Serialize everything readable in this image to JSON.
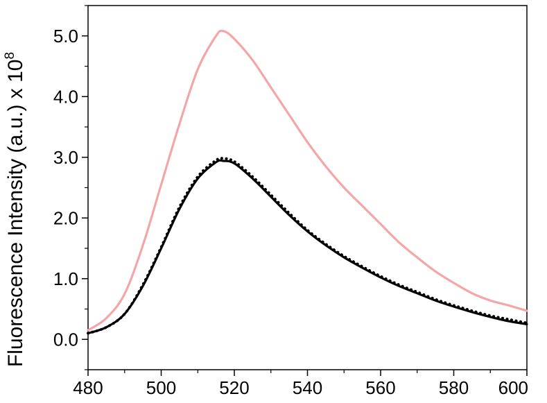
{
  "chart_data": {
    "type": "line",
    "title": "",
    "xlabel": "",
    "ylabel": "Fluorescence Intensity (a.u.) x 10",
    "ylabel_exponent": "8",
    "xlim": [
      480,
      600
    ],
    "ylim": [
      -0.5,
      5.5
    ],
    "x_ticks": [
      "480",
      "500",
      "520",
      "540",
      "560",
      "580",
      "600"
    ],
    "y_ticks": [
      "0.0",
      "1.0",
      "2.0",
      "3.0",
      "4.0",
      "5.0"
    ],
    "grid": false,
    "legend": "none",
    "series": [
      {
        "color": "#f4a6a6",
        "style": "solid",
        "x": [
          480,
          485,
          490,
          495,
          500,
          505,
          510,
          515,
          517,
          520,
          525,
          530,
          535,
          540,
          545,
          550,
          555,
          560,
          565,
          570,
          575,
          580,
          585,
          590,
          595,
          600
        ],
        "y": [
          0.15,
          0.35,
          0.75,
          1.55,
          2.55,
          3.55,
          4.45,
          5.0,
          5.08,
          4.95,
          4.6,
          4.15,
          3.7,
          3.25,
          2.85,
          2.5,
          2.2,
          1.9,
          1.6,
          1.35,
          1.12,
          0.93,
          0.76,
          0.64,
          0.56,
          0.47
        ]
      },
      {
        "color": "#000000",
        "style": "solid",
        "x": [
          480,
          485,
          490,
          495,
          500,
          505,
          510,
          515,
          517,
          520,
          525,
          530,
          535,
          540,
          545,
          550,
          555,
          560,
          565,
          570,
          575,
          580,
          585,
          590,
          595,
          600
        ],
        "y": [
          0.1,
          0.2,
          0.42,
          0.88,
          1.5,
          2.15,
          2.65,
          2.92,
          2.94,
          2.9,
          2.65,
          2.35,
          2.05,
          1.78,
          1.55,
          1.35,
          1.18,
          1.02,
          0.88,
          0.76,
          0.64,
          0.54,
          0.45,
          0.37,
          0.3,
          0.25
        ]
      },
      {
        "color": "#000000",
        "style": "dotted",
        "x": [
          480,
          485,
          490,
          495,
          500,
          505,
          510,
          515,
          517,
          520,
          525,
          530,
          535,
          540,
          545,
          550,
          555,
          560,
          565,
          570,
          575,
          580,
          585,
          590,
          595,
          600
        ],
        "y": [
          0.1,
          0.2,
          0.42,
          0.9,
          1.52,
          2.18,
          2.68,
          2.95,
          2.98,
          2.93,
          2.68,
          2.38,
          2.08,
          1.8,
          1.57,
          1.37,
          1.2,
          1.04,
          0.9,
          0.78,
          0.66,
          0.56,
          0.47,
          0.39,
          0.33,
          0.27
        ]
      }
    ]
  }
}
